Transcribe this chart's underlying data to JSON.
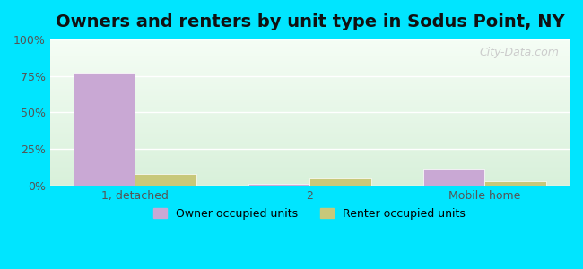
{
  "title": "Owners and renters by unit type in Sodus Point, NY",
  "categories": [
    "1, detached",
    "2",
    "Mobile home"
  ],
  "owner_values": [
    77,
    1,
    11
  ],
  "renter_values": [
    8,
    5,
    3
  ],
  "owner_color": "#c9a8d4",
  "renter_color": "#c8c87a",
  "yticks": [
    0,
    25,
    50,
    75,
    100
  ],
  "ytick_labels": [
    "0%",
    "25%",
    "50%",
    "75%",
    "100%"
  ],
  "ylim": [
    0,
    100
  ],
  "bar_width": 0.35,
  "background_top": "#e8f5e9",
  "background_bottom": "#f0faf0",
  "outer_bg": "#00e5ff",
  "title_fontsize": 14,
  "watermark": "City-Data.com"
}
